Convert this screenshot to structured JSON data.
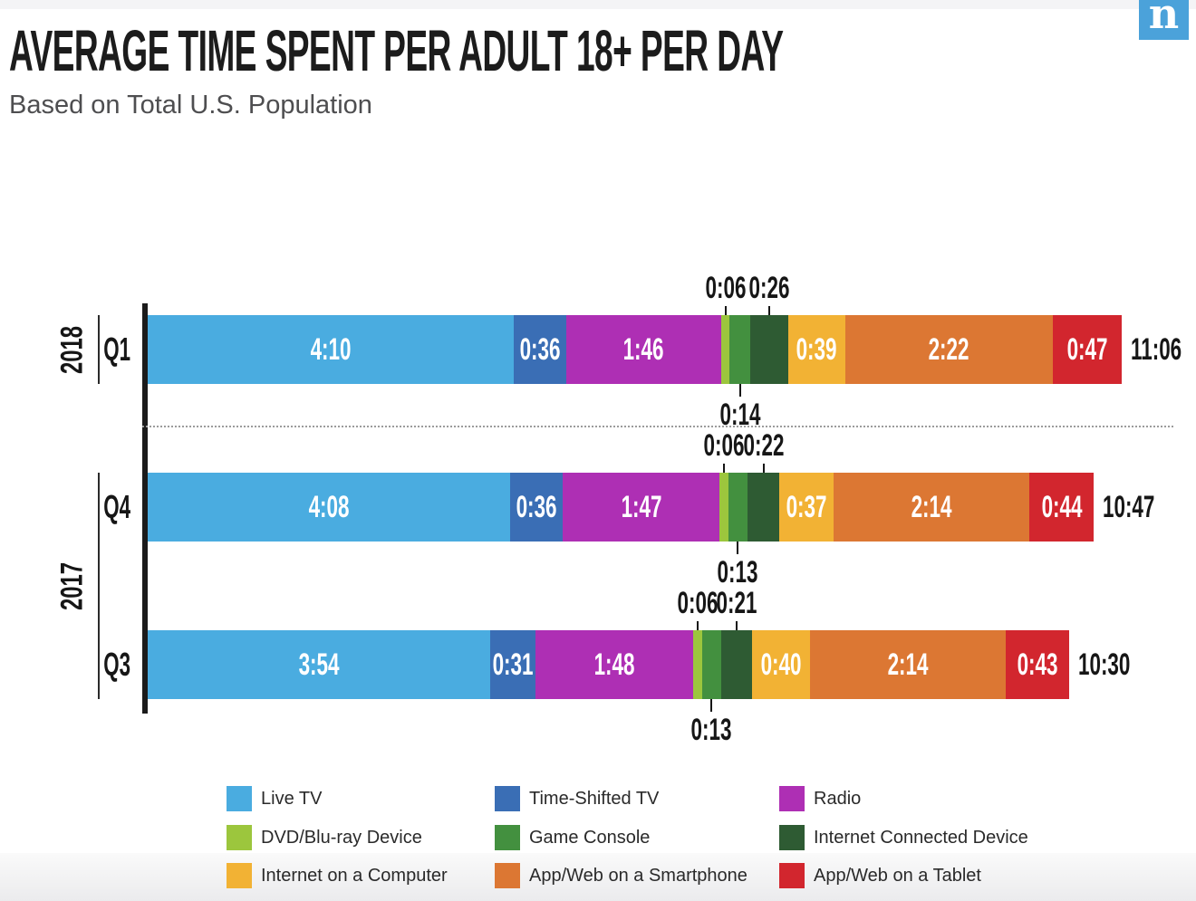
{
  "page": {
    "logo_letter": "n"
  },
  "chart_data": {
    "type": "bar",
    "variant": "horizontal-stacked",
    "title": "AVERAGE TIME SPENT PER ADULT 18+ PER DAY",
    "subtitle": "Based on Total U.S. Population",
    "unit": "hours:minutes per day",
    "legend_position": "bottom",
    "axis": {
      "baseline": true,
      "gridlines": false
    },
    "categories": [
      "Live TV",
      "Time-Shifted TV",
      "Radio",
      "DVD/Blu-ray Device",
      "Game Console",
      "Internet Connected Device",
      "Internet on a Computer",
      "App/Web on a Smartphone",
      "App/Web on a Tablet"
    ],
    "colors": [
      "#4AACE0",
      "#3A6EB5",
      "#AE2FB4",
      "#9CC63D",
      "#43903F",
      "#2E5B33",
      "#F2B234",
      "#DC7733",
      "#D2262E"
    ],
    "label_position": [
      "inside",
      "inside",
      "inside",
      "above",
      "below",
      "above",
      "inside",
      "inside",
      "inside"
    ],
    "rows": [
      {
        "year": "2018",
        "quarter": "Q1",
        "values": [
          "4:10",
          "0:36",
          "1:46",
          "0:06",
          "0:14",
          "0:26",
          "0:39",
          "2:22",
          "0:47"
        ],
        "minutes": [
          250,
          36,
          106,
          6,
          14,
          26,
          39,
          142,
          47
        ],
        "total": "11:06"
      },
      {
        "year": "2017",
        "quarter": "Q4",
        "values": [
          "4:08",
          "0:36",
          "1:47",
          "0:06",
          "0:13",
          "0:22",
          "0:37",
          "2:14",
          "0:44"
        ],
        "minutes": [
          248,
          36,
          107,
          6,
          13,
          22,
          37,
          134,
          44
        ],
        "total": "10:47"
      },
      {
        "year": "2017",
        "quarter": "Q3",
        "values": [
          "3:54",
          "0:31",
          "1:48",
          "0:06",
          "0:13",
          "0:21",
          "0:40",
          "2:14",
          "0:43"
        ],
        "minutes": [
          234,
          31,
          108,
          6,
          13,
          21,
          40,
          134,
          43
        ],
        "total": "10:30"
      }
    ]
  }
}
